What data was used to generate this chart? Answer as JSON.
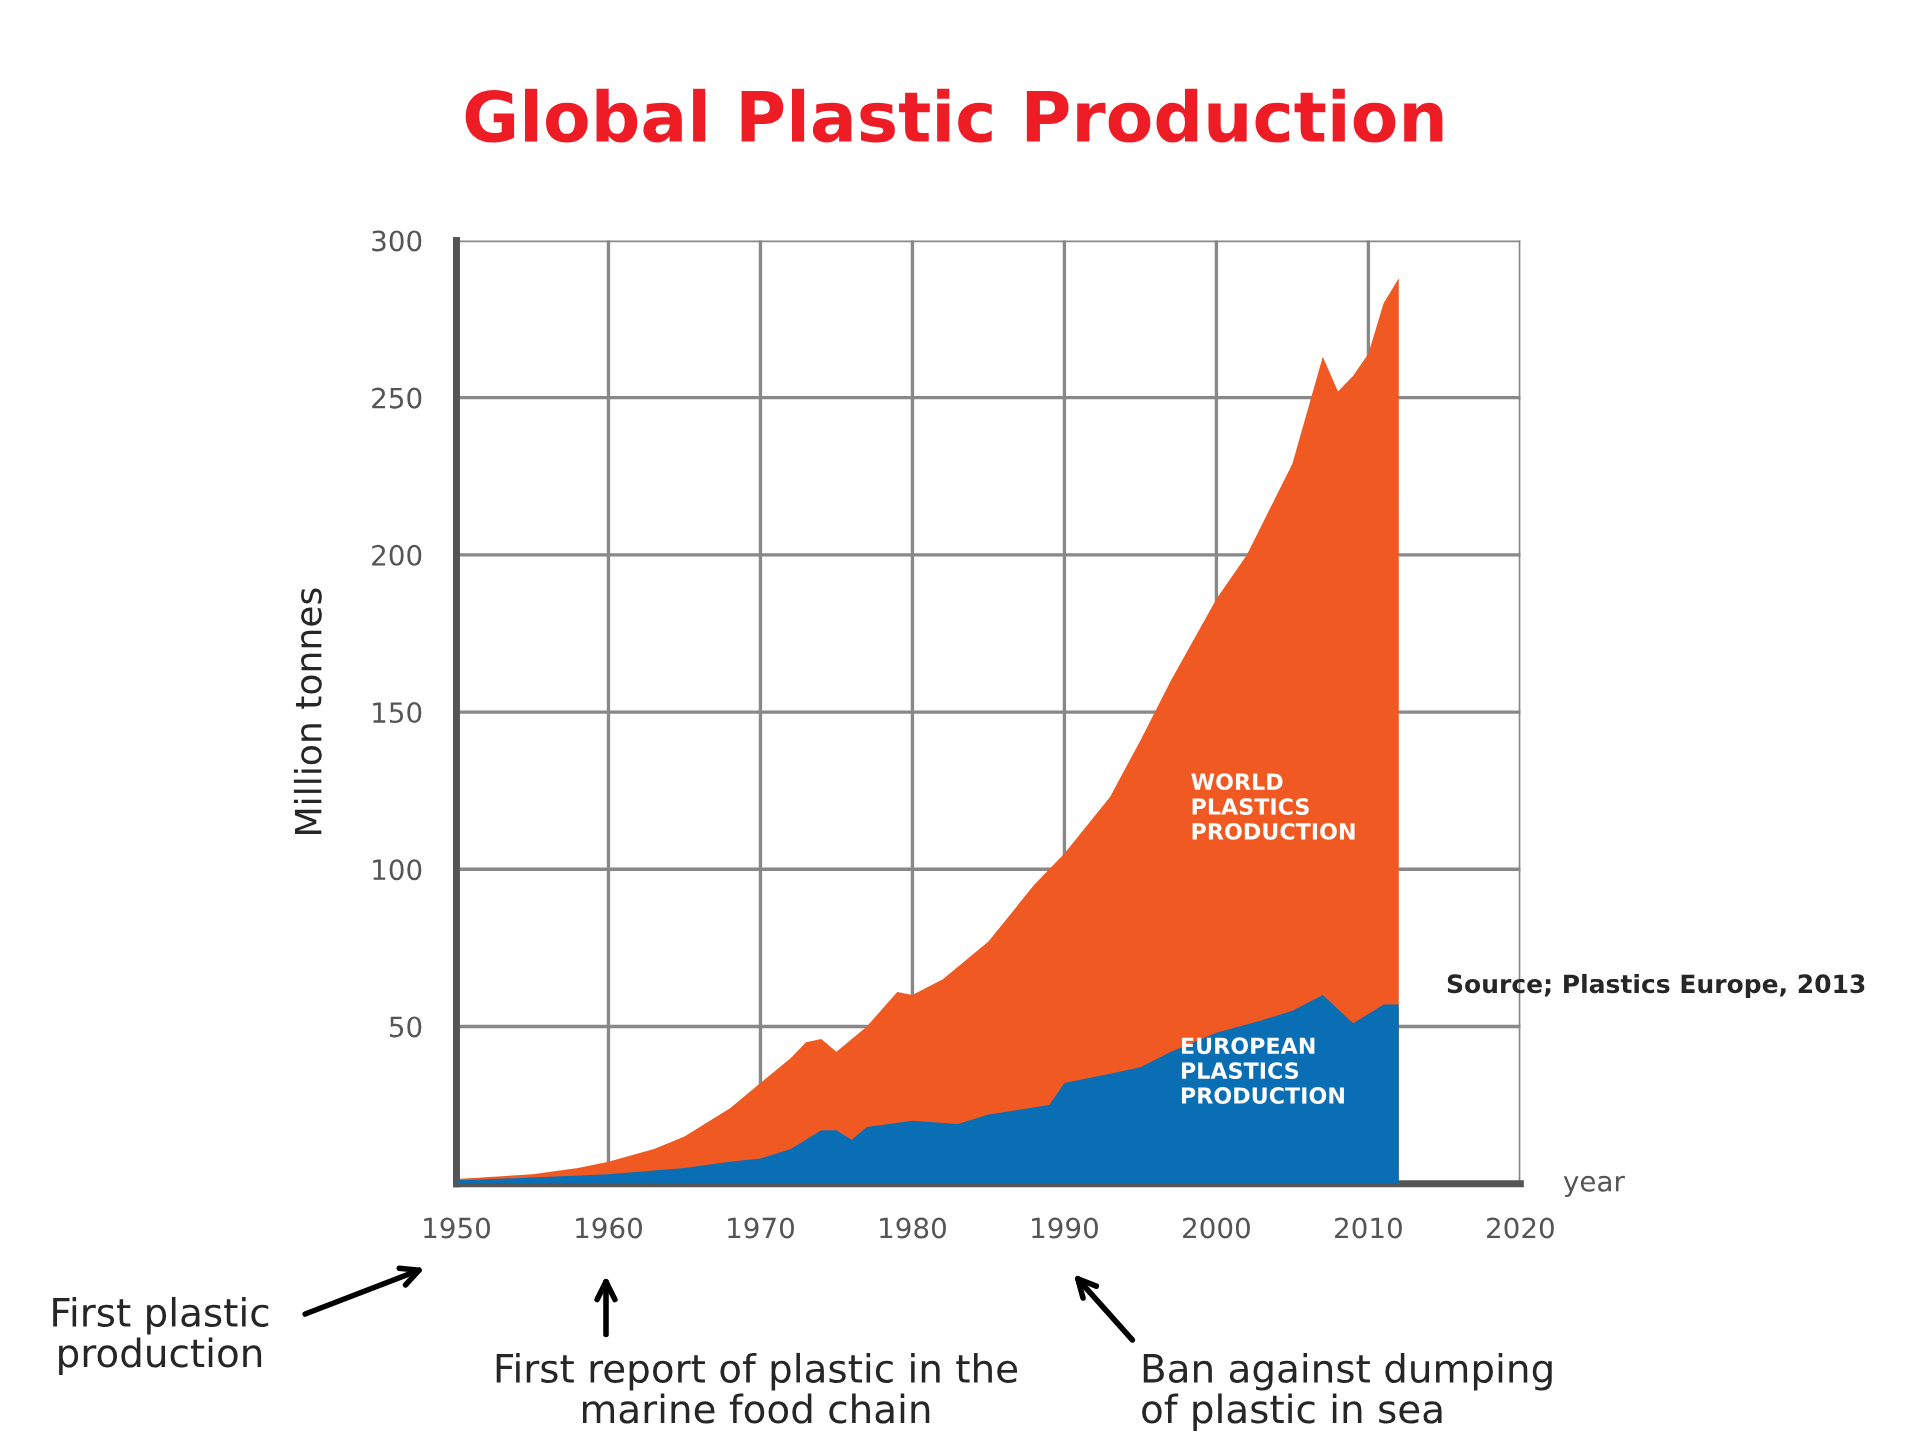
{
  "chart_data": {
    "type": "area",
    "title": "Global Plastic Production",
    "ylabel": "Million tonnes",
    "xlabel": "year",
    "xlim": [
      1950,
      2020
    ],
    "xticks": [
      1950,
      1960,
      1970,
      1980,
      1990,
      2000,
      2010,
      2020
    ],
    "ylim": [
      0,
      300
    ],
    "yticks": [
      50,
      100,
      150,
      200,
      250,
      300
    ],
    "grid": true,
    "series": [
      {
        "name": "WORLD PLASTICS PRODUCTION",
        "color": "#f05a22",
        "x": [
          1950,
          1955,
          1958,
          1960,
          1963,
          1965,
          1968,
          1970,
          1972,
          1973,
          1974,
          1975,
          1977,
          1979,
          1980,
          1982,
          1985,
          1988,
          1990,
          1993,
          1995,
          1997,
          2000,
          2002,
          2005,
          2007,
          2008,
          2009,
          2010,
          2011,
          2012
        ],
        "values": [
          1.5,
          3,
          5,
          7,
          11,
          15,
          24,
          32,
          40,
          45,
          46,
          42,
          50,
          61,
          60,
          65,
          77,
          95,
          105,
          123,
          141,
          160,
          186,
          200,
          229,
          263,
          252,
          257,
          264,
          280,
          288
        ]
      },
      {
        "name": "EUROPEAN PLASTICS PRODUCTION",
        "color": "#0a6eb4",
        "x": [
          1950,
          1955,
          1960,
          1965,
          1968,
          1970,
          1972,
          1974,
          1975,
          1976,
          1977,
          1980,
          1983,
          1985,
          1989,
          1990,
          1993,
          1995,
          1997,
          2000,
          2003,
          2005,
          2007,
          2009,
          2010,
          2011,
          2012
        ],
        "values": [
          1,
          2,
          3,
          5,
          7,
          8,
          11,
          17,
          17,
          14,
          18,
          20,
          19,
          22,
          25,
          32,
          35,
          37,
          42,
          48,
          52,
          55,
          60,
          51,
          54,
          57,
          57
        ]
      }
    ],
    "annotations": [
      "Source; Plastics Europe, 2013",
      "First plastic\nproduction",
      "First report of plastic in the\nmarine food chain",
      "Ban against dumping\nof plastic in sea"
    ]
  }
}
